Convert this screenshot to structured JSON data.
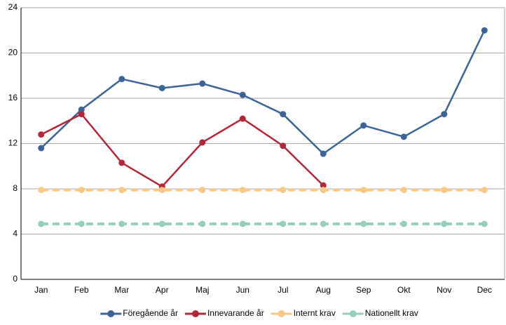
{
  "chart_data": {
    "type": "line",
    "categories": [
      "Jan",
      "Feb",
      "Mar",
      "Apr",
      "Maj",
      "Jun",
      "Jul",
      "Aug",
      "Sep",
      "Okt",
      "Nov",
      "Dec"
    ],
    "series": [
      {
        "name": "Föregående år",
        "color": "#3a6498",
        "dashed": false,
        "values": [
          11.6,
          15.0,
          17.7,
          16.9,
          17.3,
          16.3,
          14.6,
          11.1,
          13.6,
          12.6,
          14.6,
          22.0
        ]
      },
      {
        "name": "Innevarande år",
        "color": "#b5263a",
        "dashed": false,
        "values": [
          12.8,
          14.6,
          10.3,
          8.2,
          12.1,
          14.2,
          11.8,
          8.3,
          null,
          null,
          null,
          null
        ]
      },
      {
        "name": "Internt krav",
        "color": "#f9c784",
        "dashed": true,
        "values": [
          7.9,
          7.9,
          7.9,
          7.9,
          7.9,
          7.9,
          7.9,
          7.9,
          7.9,
          7.9,
          7.9,
          7.9
        ]
      },
      {
        "name": "Nationellt krav",
        "color": "#94d0b8",
        "dashed": true,
        "values": [
          4.9,
          4.9,
          4.9,
          4.9,
          4.9,
          4.9,
          4.9,
          4.9,
          4.9,
          4.9,
          4.9,
          4.9
        ]
      }
    ],
    "ylim": [
      0,
      24
    ],
    "yticks": [
      0,
      4,
      8,
      12,
      16,
      20,
      24
    ],
    "grid": true,
    "legend": "bottom"
  }
}
